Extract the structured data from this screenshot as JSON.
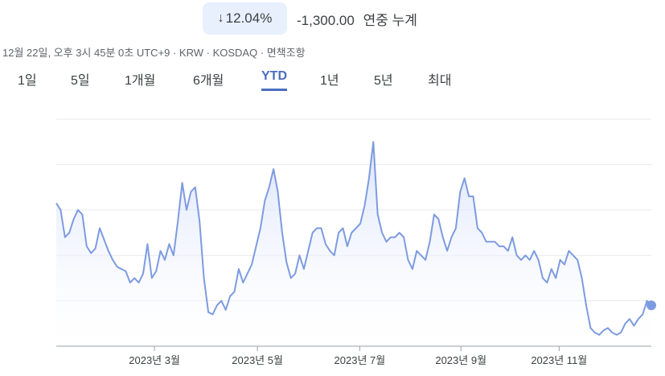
{
  "header": {
    "change_percent": "12.04%",
    "change_direction_icon": "arrow-down-icon",
    "change_absolute": "-1,300.00",
    "change_period_label": "연중 누계",
    "meta_line": "12월 22일, 오후 3시 45분 0초 UTC+9 · KRW · KOSDAQ · 면책조항"
  },
  "tabs": [
    {
      "label": "1일"
    },
    {
      "label": "5일"
    },
    {
      "label": "1개월"
    },
    {
      "label": "6개월"
    },
    {
      "label": "YTD"
    },
    {
      "label": "1년"
    },
    {
      "label": "5년"
    },
    {
      "label": "최대"
    }
  ],
  "active_tab": "YTD",
  "colors": {
    "line": "#7d9be0",
    "area_top": "#d6e0fa",
    "accent": "#4a6fc1",
    "gridline": "#e8eaed"
  },
  "chart_data": {
    "type": "area",
    "grid": true,
    "xlabel": "",
    "ylabel": "",
    "x_tick_labels": [
      "2023년 3월",
      "2023년 5월",
      "2023년 7월",
      "2023년 9월",
      "2023년 11월"
    ],
    "ylim": [
      0,
      100
    ],
    "series": [
      {
        "values": [
          63,
          60,
          48,
          50,
          56,
          60,
          58,
          44,
          41,
          43,
          52,
          47,
          42,
          38,
          35,
          34,
          33,
          28,
          30,
          28,
          32,
          45,
          30,
          33,
          42,
          38,
          45,
          40,
          55,
          72,
          60,
          68,
          70,
          55,
          30,
          15,
          14,
          18,
          20,
          16,
          22,
          24,
          34,
          28,
          32,
          36,
          44,
          52,
          64,
          70,
          78,
          68,
          50,
          37,
          30,
          32,
          40,
          34,
          42,
          50,
          52,
          52,
          45,
          42,
          40,
          50,
          52,
          44,
          50,
          52,
          54,
          62,
          74,
          90,
          58,
          50,
          46,
          48,
          48,
          50,
          48,
          38,
          34,
          42,
          40,
          38,
          46,
          58,
          56,
          48,
          42,
          48,
          52,
          68,
          74,
          66,
          66,
          52,
          50,
          46,
          46,
          46,
          44,
          44,
          42,
          48,
          40,
          38,
          40,
          38,
          42,
          38,
          30,
          28,
          34,
          30,
          38,
          36,
          42,
          40,
          38,
          30,
          18,
          8,
          6,
          5,
          7,
          8,
          6,
          5,
          6,
          10,
          12,
          9,
          12,
          14,
          20,
          18
        ],
        "last_point": true
      }
    ]
  }
}
